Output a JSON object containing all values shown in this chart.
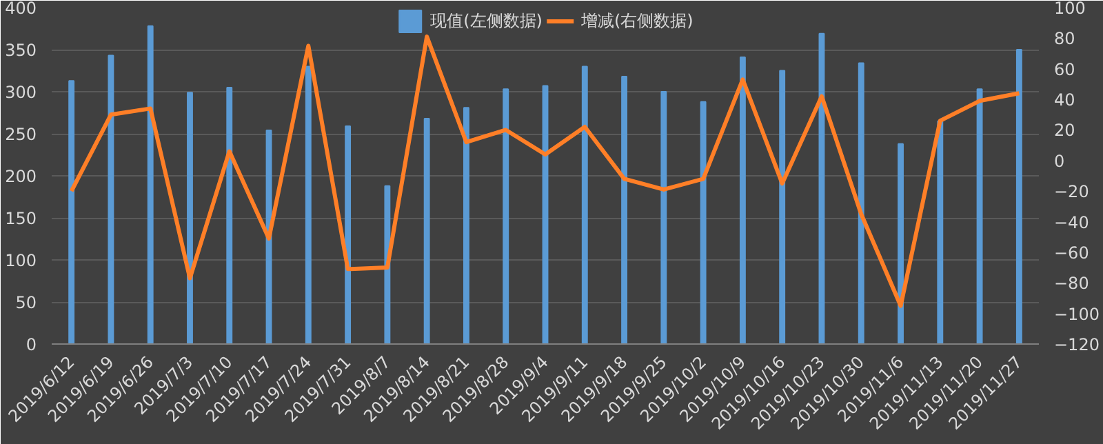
{
  "chart_data": {
    "type": "bar",
    "categories": [
      "2019/6/12",
      "2019/6/19",
      "2019/6/26",
      "2019/7/3",
      "2019/7/10",
      "2019/7/17",
      "2019/7/24",
      "2019/7/31",
      "2019/8/7",
      "2019/8/14",
      "2019/8/21",
      "2019/8/28",
      "2019/9/4",
      "2019/9/11",
      "2019/9/18",
      "2019/9/25",
      "2019/10/2",
      "2019/10/9",
      "2019/10/16",
      "2019/10/23",
      "2019/10/30",
      "2019/11/6",
      "2019/11/13",
      "2019/11/20",
      "2019/11/27"
    ],
    "series": [
      {
        "name": "现值(左侧数据)",
        "color": "#5b9bd5",
        "values": [
          313,
          343,
          378,
          299,
          305,
          254,
          330,
          259,
          188,
          268,
          281,
          303,
          307,
          330,
          318,
          300,
          288,
          341,
          325,
          369,
          334,
          238,
          265,
          303,
          350
        ]
      },
      {
        "name": "增减(右侧数据)",
        "type": "line",
        "axis": "y2",
        "color": "#ff7f27",
        "values": [
          -20,
          30,
          34,
          -77,
          6,
          -51,
          75,
          -71,
          -70,
          81,
          12,
          20,
          4,
          22,
          -12,
          -19,
          -12,
          53,
          -15,
          42,
          -35,
          -95,
          26,
          39,
          44
        ]
      }
    ],
    "ylim": [
      0,
      400
    ],
    "yticks": [
      0,
      50,
      100,
      150,
      200,
      250,
      300,
      350,
      400
    ],
    "y2lim": [
      -120,
      100
    ],
    "y2ticks": [
      -120,
      -100,
      -80,
      -60,
      -40,
      -20,
      0,
      20,
      40,
      60,
      80,
      100
    ],
    "grid": "y",
    "legend": "top"
  }
}
